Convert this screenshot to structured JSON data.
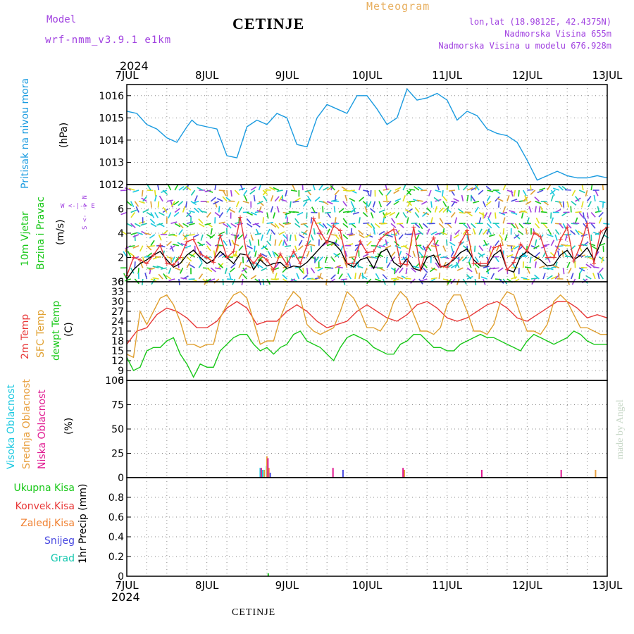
{
  "header": {
    "model_label": "Model",
    "model_name": "wrf-nmm_v3.9.1 e1km",
    "station": "CETINJE",
    "meteogram": "Meteogram",
    "lonlat": "lon,lat (18.9812E, 42.4375N)",
    "elevation": "Nadmorska Visina 655m",
    "model_elevation": "Nadmorska Visina u modelu 676.928m"
  },
  "footer": {
    "station": "CETINJE",
    "credit": "made by Angel"
  },
  "colors": {
    "pressure": "#1a9be0",
    "temp2m": "#e83838",
    "sfc": "#e0a030",
    "dewpt": "#19c819",
    "high_cloud": "#19c8e0",
    "mid_cloud": "#e8a040",
    "low_cloud": "#e01890",
    "total_precip": "#19c819",
    "convective": "#e83838",
    "frozen": "#f08030",
    "snow": "#4848e0",
    "graupel": "#19c8b0",
    "wind_label": "#19c819",
    "model": "#a040e0",
    "meteogram": "#e8b060"
  },
  "chart_data": {
    "time_axis": {
      "year": "2024",
      "ticks": [
        "7JUL",
        "8JUL",
        "9JUL",
        "10JUL",
        "11JUL",
        "12JUL",
        "13JUL"
      ],
      "hours_total": 144
    },
    "panels": [
      {
        "id": "pressure",
        "type": "line",
        "title": "Pritisak na nivou mora",
        "unit": "(hPa)",
        "ylim": [
          1012,
          1016.5
        ],
        "yticks": [
          1012,
          1013,
          1014,
          1015,
          1016
        ],
        "series": [
          {
            "name": "Pritisak na nivou mora",
            "x": [
              0,
              3,
              6,
              9,
              12,
              15,
              18,
              19.5,
              21,
              24,
              27,
              30,
              33,
              36,
              39,
              42,
              45,
              48,
              51,
              54,
              57,
              60,
              63,
              66,
              69,
              72,
              75,
              78,
              81,
              84,
              87,
              90,
              93,
              96,
              99,
              102,
              105,
              108,
              111,
              114,
              117,
              120,
              123,
              126,
              129,
              132,
              135,
              138,
              141,
              144
            ],
            "y": [
              1015.3,
              1015.2,
              1014.7,
              1014.5,
              1014.1,
              1013.9,
              1014.6,
              1014.9,
              1014.7,
              1014.6,
              1014.5,
              1013.3,
              1013.2,
              1014.6,
              1014.9,
              1014.7,
              1015.2,
              1015.0,
              1013.8,
              1013.7,
              1015.0,
              1015.6,
              1015.4,
              1015.2,
              1016.0,
              1016.0,
              1015.4,
              1014.7,
              1015.0,
              1016.3,
              1015.8,
              1015.9,
              1016.1,
              1015.8,
              1014.9,
              1015.3,
              1015.1,
              1014.5,
              1014.3,
              1014.2,
              1013.9,
              1013.1,
              1012.2,
              1012.4,
              1012.6,
              1012.4,
              1012.3,
              1012.3,
              1012.4,
              1012.3
            ]
          }
        ]
      },
      {
        "id": "wind",
        "type": "line",
        "title_line1": "10m Vjetar",
        "title_line2": "Brzina i Pravac",
        "unit": "(m/s)",
        "compass": "W <-|-> E",
        "compass_vertical": "S <- -> N",
        "ylim": [
          0,
          8
        ],
        "yticks": [
          0,
          2,
          4,
          6
        ],
        "series": [
          {
            "name": "wind_speed",
            "x": [
              0,
              2,
              4,
              6,
              8,
              10,
              12,
              14,
              16,
              18,
              20,
              22,
              24,
              26,
              28,
              30,
              32,
              34,
              36,
              38,
              40,
              42,
              44,
              46,
              48,
              50,
              52,
              54,
              56,
              58,
              60,
              62,
              64,
              66,
              68,
              70,
              72,
              74,
              76,
              78,
              80,
              82,
              84,
              86,
              88,
              90,
              92,
              94,
              96,
              98,
              100,
              102,
              104,
              106,
              108,
              110,
              112,
              114,
              116,
              118,
              120,
              122,
              124,
              126,
              128,
              130,
              132,
              134,
              136,
              138,
              140,
              142,
              144
            ],
            "y": [
              0.2,
              1.0,
              1.5,
              1.8,
              2.2,
              2.5,
              1.8,
              1.2,
              1.5,
              2.2,
              2.6,
              2.0,
              1.5,
              1.8,
              2.5,
              2.0,
              1.5,
              2.3,
              2.2,
              1.0,
              1.8,
              1.3,
              1.5,
              1.6,
              1.1,
              1.3,
              1.2,
              1.6,
              2.2,
              2.8,
              3.4,
              3.2,
              2.6,
              1.5,
              1.2,
              1.8,
              2.0,
              1.1,
              2.4,
              2.7,
              1.6,
              1.2,
              1.9,
              1.1,
              0.9,
              2.0,
              2.2,
              1.2,
              1.4,
              1.8,
              2.4,
              2.7,
              1.8,
              1.3,
              1.3,
              2.2,
              2.6,
              1.0,
              0.8,
              2.1,
              2.5,
              2.1,
              1.8,
              1.3,
              1.4,
              2.2,
              2.6,
              1.8,
              2.2,
              2.8,
              1.8,
              3.2,
              4.5
            ]
          },
          {
            "name": "wind_gust",
            "x": [
              0,
              2,
              4,
              6,
              8,
              10,
              12,
              14,
              16,
              18,
              20,
              22,
              24,
              26,
              28,
              30,
              32,
              34,
              36,
              38,
              40,
              42,
              44,
              46,
              48,
              50,
              52,
              54,
              56,
              58,
              60,
              62,
              64,
              66,
              68,
              70,
              72,
              74,
              76,
              78,
              80,
              82,
              84,
              86,
              88,
              90,
              92,
              94,
              96,
              98,
              100,
              102,
              104,
              106,
              108,
              110,
              112,
              114,
              116,
              118,
              120,
              122,
              124,
              126,
              128,
              130,
              132,
              134,
              136,
              138,
              140,
              142,
              144
            ],
            "y": [
              0.5,
              2.0,
              1.8,
              1.5,
              2.2,
              3.0,
              1.5,
              1.4,
              2.0,
              3.3,
              3.5,
              2.3,
              2.0,
              1.6,
              3.8,
              2.0,
              2.5,
              5.3,
              2.2,
              1.5,
              2.2,
              1.8,
              1.0,
              2.3,
              1.4,
              2.5,
              1.5,
              3.0,
              5.2,
              4.1,
              3.2,
              4.6,
              4.2,
              1.5,
              1.5,
              3.3,
              2.4,
              2.5,
              3.5,
              4.0,
              4.3,
              1.5,
              1.4,
              4.5,
              1.0,
              2.8,
              3.6,
              1.3,
              1.2,
              2.0,
              3.2,
              4.2,
              1.5,
              1.5,
              1.5,
              2.8,
              3.0,
              1.0,
              1.6,
              3.1,
              2.5,
              4.0,
              3.7,
              2.0,
              2.0,
              3.5,
              4.5,
              1.7,
              3.0,
              4.8,
              1.5,
              4.1,
              4.5
            ]
          }
        ]
      },
      {
        "id": "temperature",
        "type": "line",
        "title_lines": [
          "2m Temp",
          "SFC Temp",
          "dewpt Temp"
        ],
        "unit": "(C)",
        "ylim": [
          6,
          36
        ],
        "yticks": [
          6,
          9,
          12,
          15,
          18,
          21,
          24,
          27,
          30,
          33,
          36
        ],
        "series": [
          {
            "name": "2m Temp",
            "x": [
              0,
              3,
              6,
              9,
              12,
              15,
              18,
              21,
              24,
              27,
              30,
              33,
              36,
              39,
              42,
              45,
              48,
              51,
              54,
              57,
              60,
              63,
              66,
              69,
              72,
              75,
              78,
              81,
              84,
              87,
              90,
              93,
              96,
              99,
              102,
              105,
              108,
              111,
              114,
              117,
              120,
              123,
              126,
              129,
              132,
              135,
              138,
              141,
              144
            ],
            "y": [
              17,
              21,
              22,
              26,
              28,
              27,
              25,
              22,
              22,
              24,
              28,
              30,
              28,
              23,
              24,
              24,
              27,
              29,
              27,
              24,
              22,
              23,
              24,
              27,
              29,
              27,
              25,
              24,
              26,
              29,
              30,
              28,
              25,
              24,
              25,
              27,
              29,
              30,
              28,
              25,
              24,
              26,
              28,
              30,
              30,
              28,
              25,
              26,
              25
            ]
          },
          {
            "name": "SFC Temp",
            "x": [
              0,
              2,
              4,
              6,
              8,
              10,
              12,
              14,
              16,
              18,
              20,
              22,
              24,
              26,
              28,
              30,
              32,
              34,
              36,
              38,
              40,
              42,
              44,
              46,
              48,
              50,
              52,
              54,
              56,
              58,
              60,
              62,
              64,
              66,
              68,
              70,
              72,
              74,
              76,
              78,
              80,
              82,
              84,
              86,
              88,
              90,
              92,
              94,
              96,
              98,
              100,
              102,
              104,
              106,
              108,
              110,
              112,
              114,
              116,
              118,
              120,
              122,
              124,
              126,
              128,
              130,
              132,
              134,
              136,
              138,
              140,
              142,
              144
            ],
            "y": [
              14,
              13,
              27,
              23,
              27,
              31,
              32,
              29,
              24,
              17,
              17,
              16,
              17,
              17,
              25,
              29,
              32,
              33,
              31,
              24,
              17,
              18,
              18,
              25,
              30,
              33,
              31,
              23,
              21,
              20,
              21,
              22,
              27,
              33,
              31,
              27,
              22,
              22,
              21,
              24,
              30,
              33,
              31,
              26,
              21,
              21,
              20,
              22,
              29,
              32,
              32,
              27,
              21,
              21,
              20,
              23,
              30,
              33,
              32,
              26,
              21,
              21,
              20,
              23,
              30,
              32,
              30,
              26,
              22,
              22,
              21,
              20,
              20
            ]
          },
          {
            "name": "dewpt Temp",
            "x": [
              0,
              2,
              4,
              6,
              8,
              10,
              12,
              14,
              16,
              18,
              20,
              22,
              24,
              26,
              28,
              30,
              32,
              34,
              36,
              38,
              40,
              42,
              44,
              46,
              48,
              50,
              52,
              54,
              56,
              58,
              60,
              62,
              64,
              66,
              68,
              70,
              72,
              74,
              76,
              78,
              80,
              82,
              84,
              86,
              88,
              90,
              92,
              94,
              96,
              98,
              100,
              102,
              104,
              106,
              108,
              110,
              112,
              114,
              116,
              118,
              120,
              122,
              124,
              126,
              128,
              130,
              132,
              134,
              136,
              138,
              140,
              142,
              144
            ],
            "y": [
              13,
              9,
              10,
              15,
              16,
              16,
              18,
              19,
              14,
              11,
              7,
              11,
              10,
              10,
              15,
              17,
              19,
              20,
              20,
              17,
              15,
              16,
              14,
              16,
              17,
              20,
              21,
              18,
              17,
              16,
              14,
              12,
              16,
              19,
              20,
              19,
              18,
              16,
              15,
              14,
              14,
              17,
              18,
              20,
              20,
              18,
              16,
              16,
              15,
              15,
              17,
              18,
              19,
              20,
              19,
              19,
              18,
              17,
              16,
              15,
              18,
              20,
              19,
              18,
              17,
              18,
              19,
              21,
              20,
              18,
              17,
              17,
              17
            ]
          }
        ]
      },
      {
        "id": "cloud",
        "type": "bar",
        "title_lines": [
          "Visoka Oblacnost",
          "Srednja Oblacnost",
          "Niska Oblacnost"
        ],
        "unit": "(%)",
        "ylim": [
          0,
          100
        ],
        "yticks": [
          0,
          25,
          50,
          75,
          100
        ],
        "series": [
          {
            "name": "Visoka Oblacnost",
            "x": [
              40.0,
              40.7,
              41.9
            ],
            "y": [
              10,
              8,
              12
            ]
          },
          {
            "name": "Srednja Oblacnost",
            "x": [
              41.2,
              42.0,
              42.6,
              83.2,
              140.5
            ],
            "y": [
              8,
              22,
              10,
              8,
              8
            ]
          },
          {
            "name": "Niska Oblacnost",
            "x": [
              40.3,
              42.3,
              61.8,
              82.8,
              106.4,
              130.2
            ],
            "y": [
              10,
              20,
              10,
              10,
              8,
              8
            ]
          },
          {
            "name": "blue",
            "x": [
              64.8,
              43.0
            ],
            "y": [
              8,
              5
            ]
          }
        ]
      },
      {
        "id": "precip",
        "type": "bar",
        "title_lines": [
          "Ukupna Kisa",
          "Konvek.Kisa",
          "Zaledj.Kisa",
          "Snijeg",
          "Grad"
        ],
        "unit": "1hr Precip (mm)",
        "ylim": [
          0,
          1
        ],
        "yticks": [
          0,
          0.2,
          0.4,
          0.6,
          0.8
        ],
        "series": [
          {
            "name": "Ukupna Kisa",
            "x": [
              42.4
            ],
            "y": [
              0.03
            ]
          }
        ]
      }
    ]
  }
}
